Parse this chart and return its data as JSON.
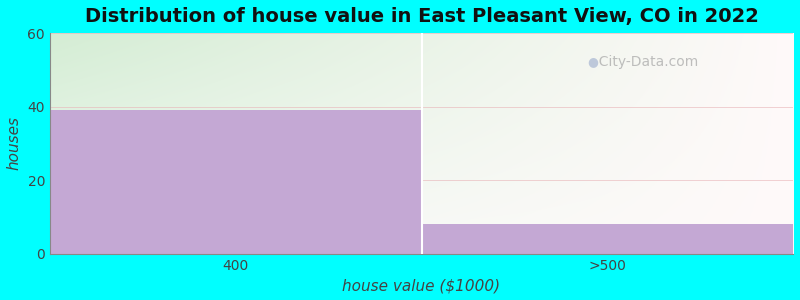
{
  "categories": [
    "400",
    ">500"
  ],
  "values": [
    39,
    8
  ],
  "bar_color": "#c4a8d4",
  "title": "Distribution of house value in East Pleasant View, CO in 2022",
  "xlabel": "house value ($1000)",
  "ylabel": "houses",
  "ylim": [
    0,
    60
  ],
  "yticks": [
    0,
    20,
    40,
    60
  ],
  "figure_bgcolor": "#00ffff",
  "plot_bg_topleft": "#d4edda",
  "plot_bg_topright": "#eaf4ea",
  "plot_bg_bottomleft": "#eaf4ea",
  "plot_bg_bottomright": "#f5fcf5",
  "watermark": "City-Data.com",
  "title_fontsize": 14,
  "label_fontsize": 11,
  "tick_fontsize": 10
}
